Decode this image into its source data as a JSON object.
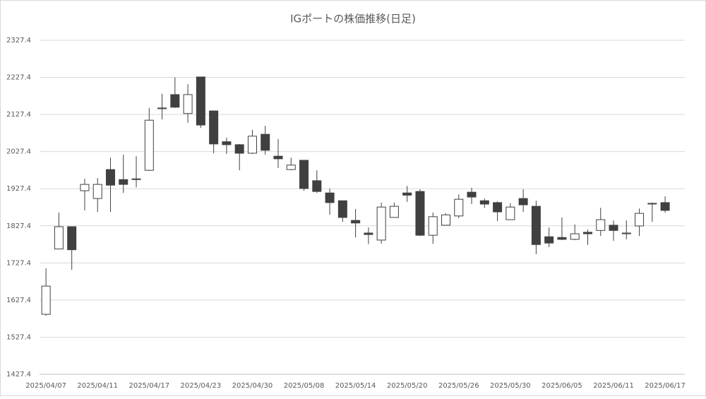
{
  "chart_data": {
    "type": "candlestick",
    "title": "IGポートの株価推移(日足)",
    "categories": [
      "2025/04/07",
      null,
      null,
      null,
      "2025/04/11",
      null,
      null,
      null,
      "2025/04/17",
      null,
      null,
      null,
      "2025/04/23",
      null,
      null,
      null,
      "2025/04/30",
      null,
      null,
      null,
      "2025/05/08",
      null,
      null,
      null,
      "2025/05/14",
      null,
      null,
      null,
      "2025/05/20",
      null,
      null,
      null,
      "2025/05/26",
      null,
      null,
      null,
      "2025/05/30",
      null,
      null,
      null,
      "2025/06/05",
      null,
      null,
      null,
      "2025/06/11",
      null,
      null,
      null,
      "2025/06/17"
    ],
    "open": [
      1589,
      1765,
      1825,
      1922,
      1901,
      1979,
      1952,
      1952,
      1977,
      2143,
      2181,
      2130,
      2228.5,
      2137,
      2054,
      2046,
      2023,
      2074,
      2015,
      1979,
      2004,
      1949,
      1916,
      1895,
      1842,
      1808,
      1789,
      1850,
      1916,
      1920,
      1802,
      1829,
      1854,
      1918,
      1895,
      1890,
      1844,
      1901,
      1880,
      1798,
      1796,
      1791,
      1810,
      1815,
      1829,
      1806,
      1827,
      1886,
      1890
    ],
    "high": [
      1713,
      1863,
      1825,
      1954,
      1956,
      2011,
      2019,
      2015,
      2145,
      2183,
      2227,
      2209,
      2229,
      2137,
      2065,
      2048,
      2086,
      2097,
      2061,
      2011,
      2004,
      1977,
      1928,
      1895,
      1873,
      1823,
      1890,
      1890,
      1935,
      1926,
      1863,
      1861,
      1912,
      1930,
      1901,
      1893,
      1888,
      1926,
      1895,
      1823,
      1850,
      1831,
      1817,
      1876,
      1842,
      1842,
      1874,
      1890,
      1907
    ],
    "low": [
      1585,
      1765,
      1709,
      1869,
      1865,
      1865,
      1916,
      1931,
      1975,
      2114,
      2145,
      2105,
      2091,
      2023,
      2021,
      1977,
      2021,
      2019,
      1983,
      1977,
      1922,
      1916,
      1857,
      1838,
      1796,
      1778,
      1779,
      1850,
      1892,
      1800,
      1779,
      1829,
      1848,
      1886,
      1876,
      1840,
      1844,
      1865,
      1751,
      1770,
      1789,
      1789,
      1776,
      1800,
      1787,
      1791,
      1800,
      1838,
      1863
    ],
    "close": [
      1665,
      1825,
      1763,
      1939,
      1939,
      1937,
      1939,
      1954,
      2112,
      2145,
      2147,
      2181,
      2099,
      2048,
      2046,
      2023,
      2069,
      2031,
      2008,
      1991,
      1928,
      1920,
      1890,
      1850,
      1835,
      1804,
      1878,
      1880,
      1910,
      1802,
      1852,
      1857,
      1899,
      1905,
      1886,
      1865,
      1878,
      1884,
      1777,
      1781,
      1791,
      1806,
      1806,
      1844,
      1815,
      1808,
      1861,
      1888,
      1869
    ],
    "up_color": "#ffffff",
    "down_color": "#404040",
    "line_color": "#404040",
    "ylim": [
      1427.4,
      2327.4
    ],
    "yticks": [
      1427.4,
      1527.4,
      1627.4,
      1727.4,
      1827.4,
      1927.4,
      2027.4,
      2127.4,
      2227.4,
      2327.4
    ],
    "grid": true
  }
}
